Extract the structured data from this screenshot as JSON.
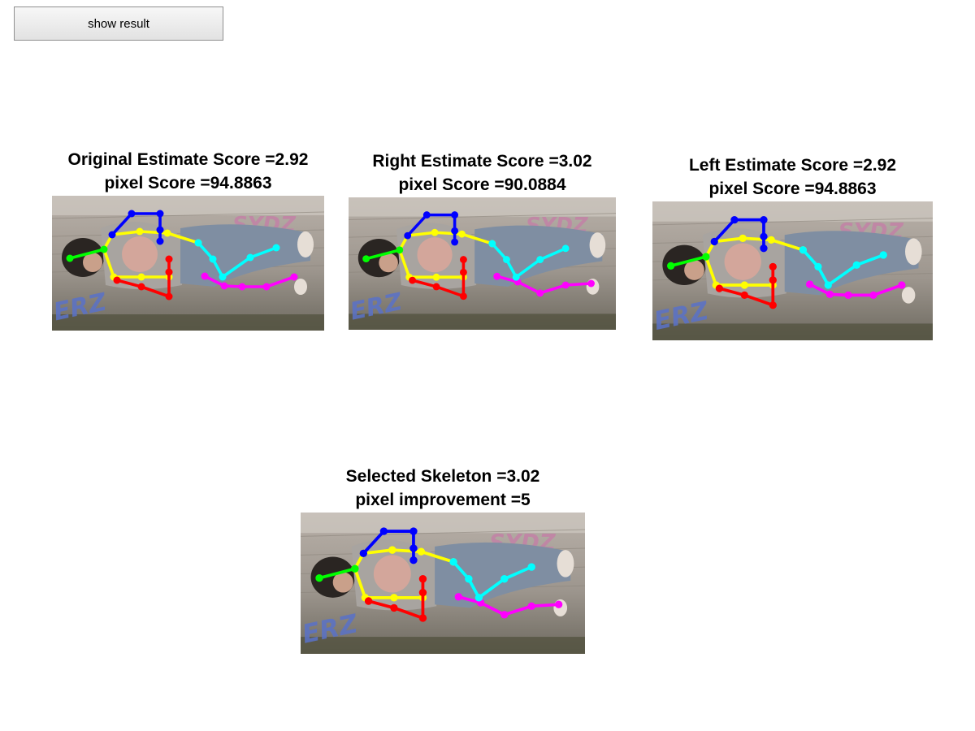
{
  "toolbar": {
    "show_result_label": "show result"
  },
  "panels": [
    {
      "id": "original",
      "title_line1": "Original Estimate Score =2.92",
      "title_line2": "pixel Score =94.8863"
    },
    {
      "id": "right",
      "title_line1": "Right Estimate Score =3.02",
      "title_line2": "pixel Score =90.0884"
    },
    {
      "id": "left",
      "title_line1": "Left Estimate Score =2.92",
      "title_line2": "pixel Score =94.8863"
    },
    {
      "id": "selected",
      "title_line1": "Selected Skeleton =3.02",
      "title_line2": "pixel improvement =5"
    }
  ],
  "image_content": {
    "graffiti_text_top": "SYDZ",
    "graffiti_text_bottom": "ERZ"
  },
  "skeleton_colors": {
    "head": "#0000ff",
    "torso": "#ffff00",
    "left_arm": "#00ff00",
    "right_arm": "#ff0000",
    "left_leg": "#00ffff",
    "right_leg": "#ff00ff"
  }
}
